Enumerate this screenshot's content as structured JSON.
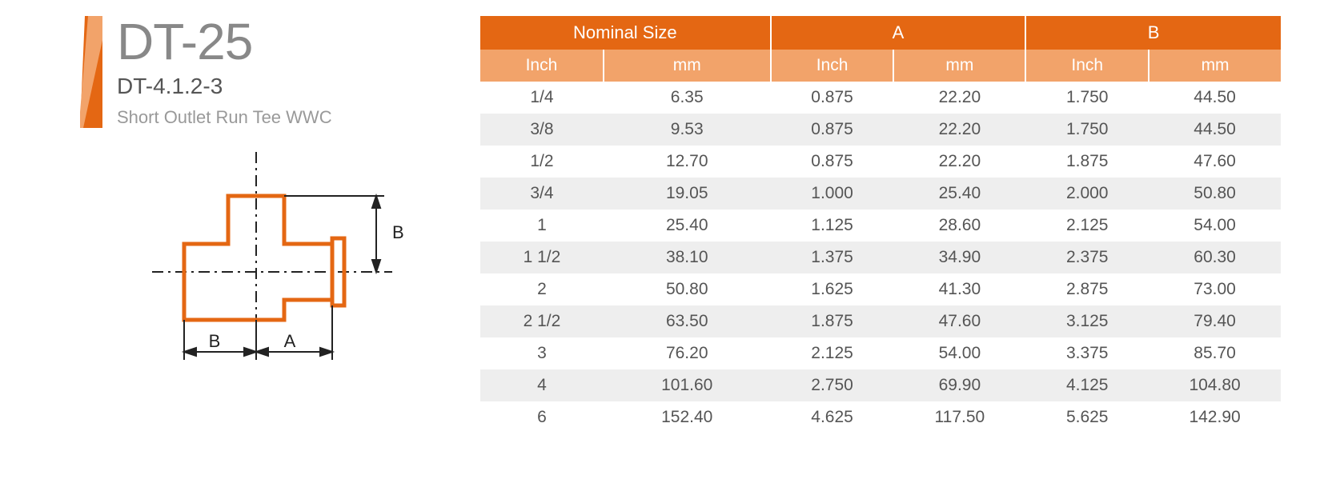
{
  "colors": {
    "accent": "#e46713",
    "accent_light": "#f2a36a",
    "row_alt": "#eeeeee",
    "text_title": "#888888",
    "text_sub": "#555555",
    "text_desc": "#999999",
    "diagram_stroke": "#e46713",
    "dim_line": "#222222"
  },
  "product": {
    "code": "DT-25",
    "subcode": "DT-4.1.2-3",
    "description": "Short Outlet Run Tee WWC"
  },
  "diagram": {
    "labels": {
      "A": "A",
      "B": "B"
    }
  },
  "table": {
    "header_groups": [
      {
        "label": "Nominal Size",
        "span": 2
      },
      {
        "label": "A",
        "span": 2
      },
      {
        "label": "B",
        "span": 2
      }
    ],
    "sub_headers": [
      "Inch",
      "mm",
      "Inch",
      "mm",
      "Inch",
      "mm"
    ],
    "rows": [
      [
        "1/4",
        "6.35",
        "0.875",
        "22.20",
        "1.750",
        "44.50"
      ],
      [
        "3/8",
        "9.53",
        "0.875",
        "22.20",
        "1.750",
        "44.50"
      ],
      [
        "1/2",
        "12.70",
        "0.875",
        "22.20",
        "1.875",
        "47.60"
      ],
      [
        "3/4",
        "19.05",
        "1.000",
        "25.40",
        "2.000",
        "50.80"
      ],
      [
        "1",
        "25.40",
        "1.125",
        "28.60",
        "2.125",
        "54.00"
      ],
      [
        "1 1/2",
        "38.10",
        "1.375",
        "34.90",
        "2.375",
        "60.30"
      ],
      [
        "2",
        "50.80",
        "1.625",
        "41.30",
        "2.875",
        "73.00"
      ],
      [
        "2 1/2",
        "63.50",
        "1.875",
        "47.60",
        "3.125",
        "79.40"
      ],
      [
        "3",
        "76.20",
        "2.125",
        "54.00",
        "3.375",
        "85.70"
      ],
      [
        "4",
        "101.60",
        "2.750",
        "69.90",
        "4.125",
        "104.80"
      ],
      [
        "6",
        "152.40",
        "4.625",
        "117.50",
        "5.625",
        "142.90"
      ]
    ]
  }
}
